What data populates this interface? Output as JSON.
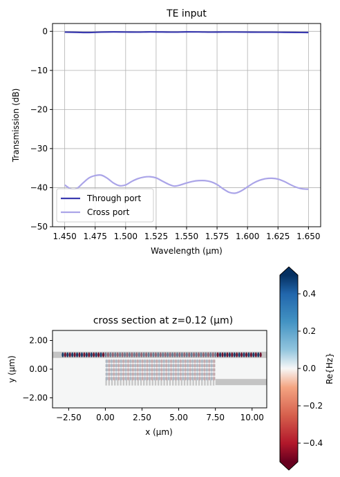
{
  "chart_data": [
    {
      "type": "line",
      "title": "TE input",
      "xlabel": "Wavelength (µm)",
      "ylabel": "Transmission (dB)",
      "xlim": [
        1.44,
        1.66
      ],
      "ylim": [
        -50,
        2
      ],
      "xticks": [
        1.45,
        1.475,
        1.5,
        1.525,
        1.55,
        1.575,
        1.6,
        1.625,
        1.65
      ],
      "xtick_labels": [
        "1.450",
        "1.475",
        "1.500",
        "1.525",
        "1.550",
        "1.575",
        "1.600",
        "1.625",
        "1.650"
      ],
      "yticks": [
        -50,
        -40,
        -30,
        -20,
        -10,
        0
      ],
      "ytick_labels": [
        "−50",
        "−40",
        "−30",
        "−20",
        "−10",
        "0"
      ],
      "grid": true,
      "legend": "lower-left",
      "series": [
        {
          "name": "Through port",
          "color": "#3a3ab0",
          "x": [
            1.45,
            1.46,
            1.47,
            1.48,
            1.49,
            1.5,
            1.51,
            1.52,
            1.53,
            1.54,
            1.55,
            1.56,
            1.57,
            1.58,
            1.59,
            1.6,
            1.61,
            1.62,
            1.63,
            1.64,
            1.65
          ],
          "y": [
            -0.2,
            -0.25,
            -0.3,
            -0.2,
            -0.15,
            -0.18,
            -0.2,
            -0.15,
            -0.17,
            -0.2,
            -0.15,
            -0.16,
            -0.2,
            -0.18,
            -0.18,
            -0.2,
            -0.22,
            -0.22,
            -0.25,
            -0.28,
            -0.3
          ]
        },
        {
          "name": "Cross port",
          "color": "#aaa4e8",
          "x": [
            1.45,
            1.455,
            1.46,
            1.465,
            1.47,
            1.475,
            1.48,
            1.485,
            1.49,
            1.495,
            1.5,
            1.505,
            1.51,
            1.515,
            1.52,
            1.525,
            1.53,
            1.535,
            1.54,
            1.545,
            1.55,
            1.555,
            1.56,
            1.565,
            1.57,
            1.575,
            1.58,
            1.585,
            1.59,
            1.595,
            1.6,
            1.605,
            1.61,
            1.615,
            1.62,
            1.625,
            1.63,
            1.635,
            1.64,
            1.645,
            1.65
          ],
          "y": [
            -39.3,
            -40.3,
            -40.2,
            -38.8,
            -37.5,
            -36.9,
            -36.8,
            -37.6,
            -38.8,
            -39.5,
            -39.3,
            -38.4,
            -37.7,
            -37.3,
            -37.2,
            -37.5,
            -38.3,
            -39.1,
            -39.6,
            -39.3,
            -38.8,
            -38.4,
            -38.2,
            -38.2,
            -38.5,
            -39.2,
            -40.3,
            -41.2,
            -41.4,
            -40.8,
            -39.8,
            -38.8,
            -38.1,
            -37.7,
            -37.6,
            -37.8,
            -38.4,
            -39.2,
            -39.9,
            -40.3,
            -40.4
          ]
        }
      ]
    },
    {
      "type": "heatmap",
      "title": "cross section at z=0.12 (µm)",
      "xlabel": "x (µm)",
      "ylabel": "y (µm)",
      "xlim": [
        -3.6,
        11.0
      ],
      "ylim": [
        -2.7,
        2.7
      ],
      "xticks": [
        -2.5,
        0.0,
        2.5,
        5.0,
        7.5,
        10.0
      ],
      "xtick_labels": [
        "−2.50",
        "0.00",
        "2.50",
        "5.00",
        "7.50",
        "10.00"
      ],
      "yticks": [
        -2.0,
        0.0,
        2.0
      ],
      "ytick_labels": [
        "−2.00",
        "0.00",
        "2.00"
      ],
      "colorbar": {
        "label": "Re{Hz}",
        "range": [
          -0.5,
          0.5
        ],
        "ticks": [
          -0.4,
          -0.2,
          0.0,
          0.2,
          0.4
        ],
        "tick_labels": [
          "−0.4",
          "−0.2",
          "0.0",
          "0.2",
          "0.4"
        ],
        "colormap": "RdBu",
        "extend": "both"
      },
      "waveguides": {
        "top_waveguide_y": 1.0,
        "bottom_waveguide_y": -0.9,
        "grating_x_start": 0.0,
        "grating_x_end": 7.5,
        "grating_rows_y": [
          0.55,
          0.25,
          -0.05,
          -0.35,
          -0.65,
          -0.9
        ]
      }
    }
  ]
}
